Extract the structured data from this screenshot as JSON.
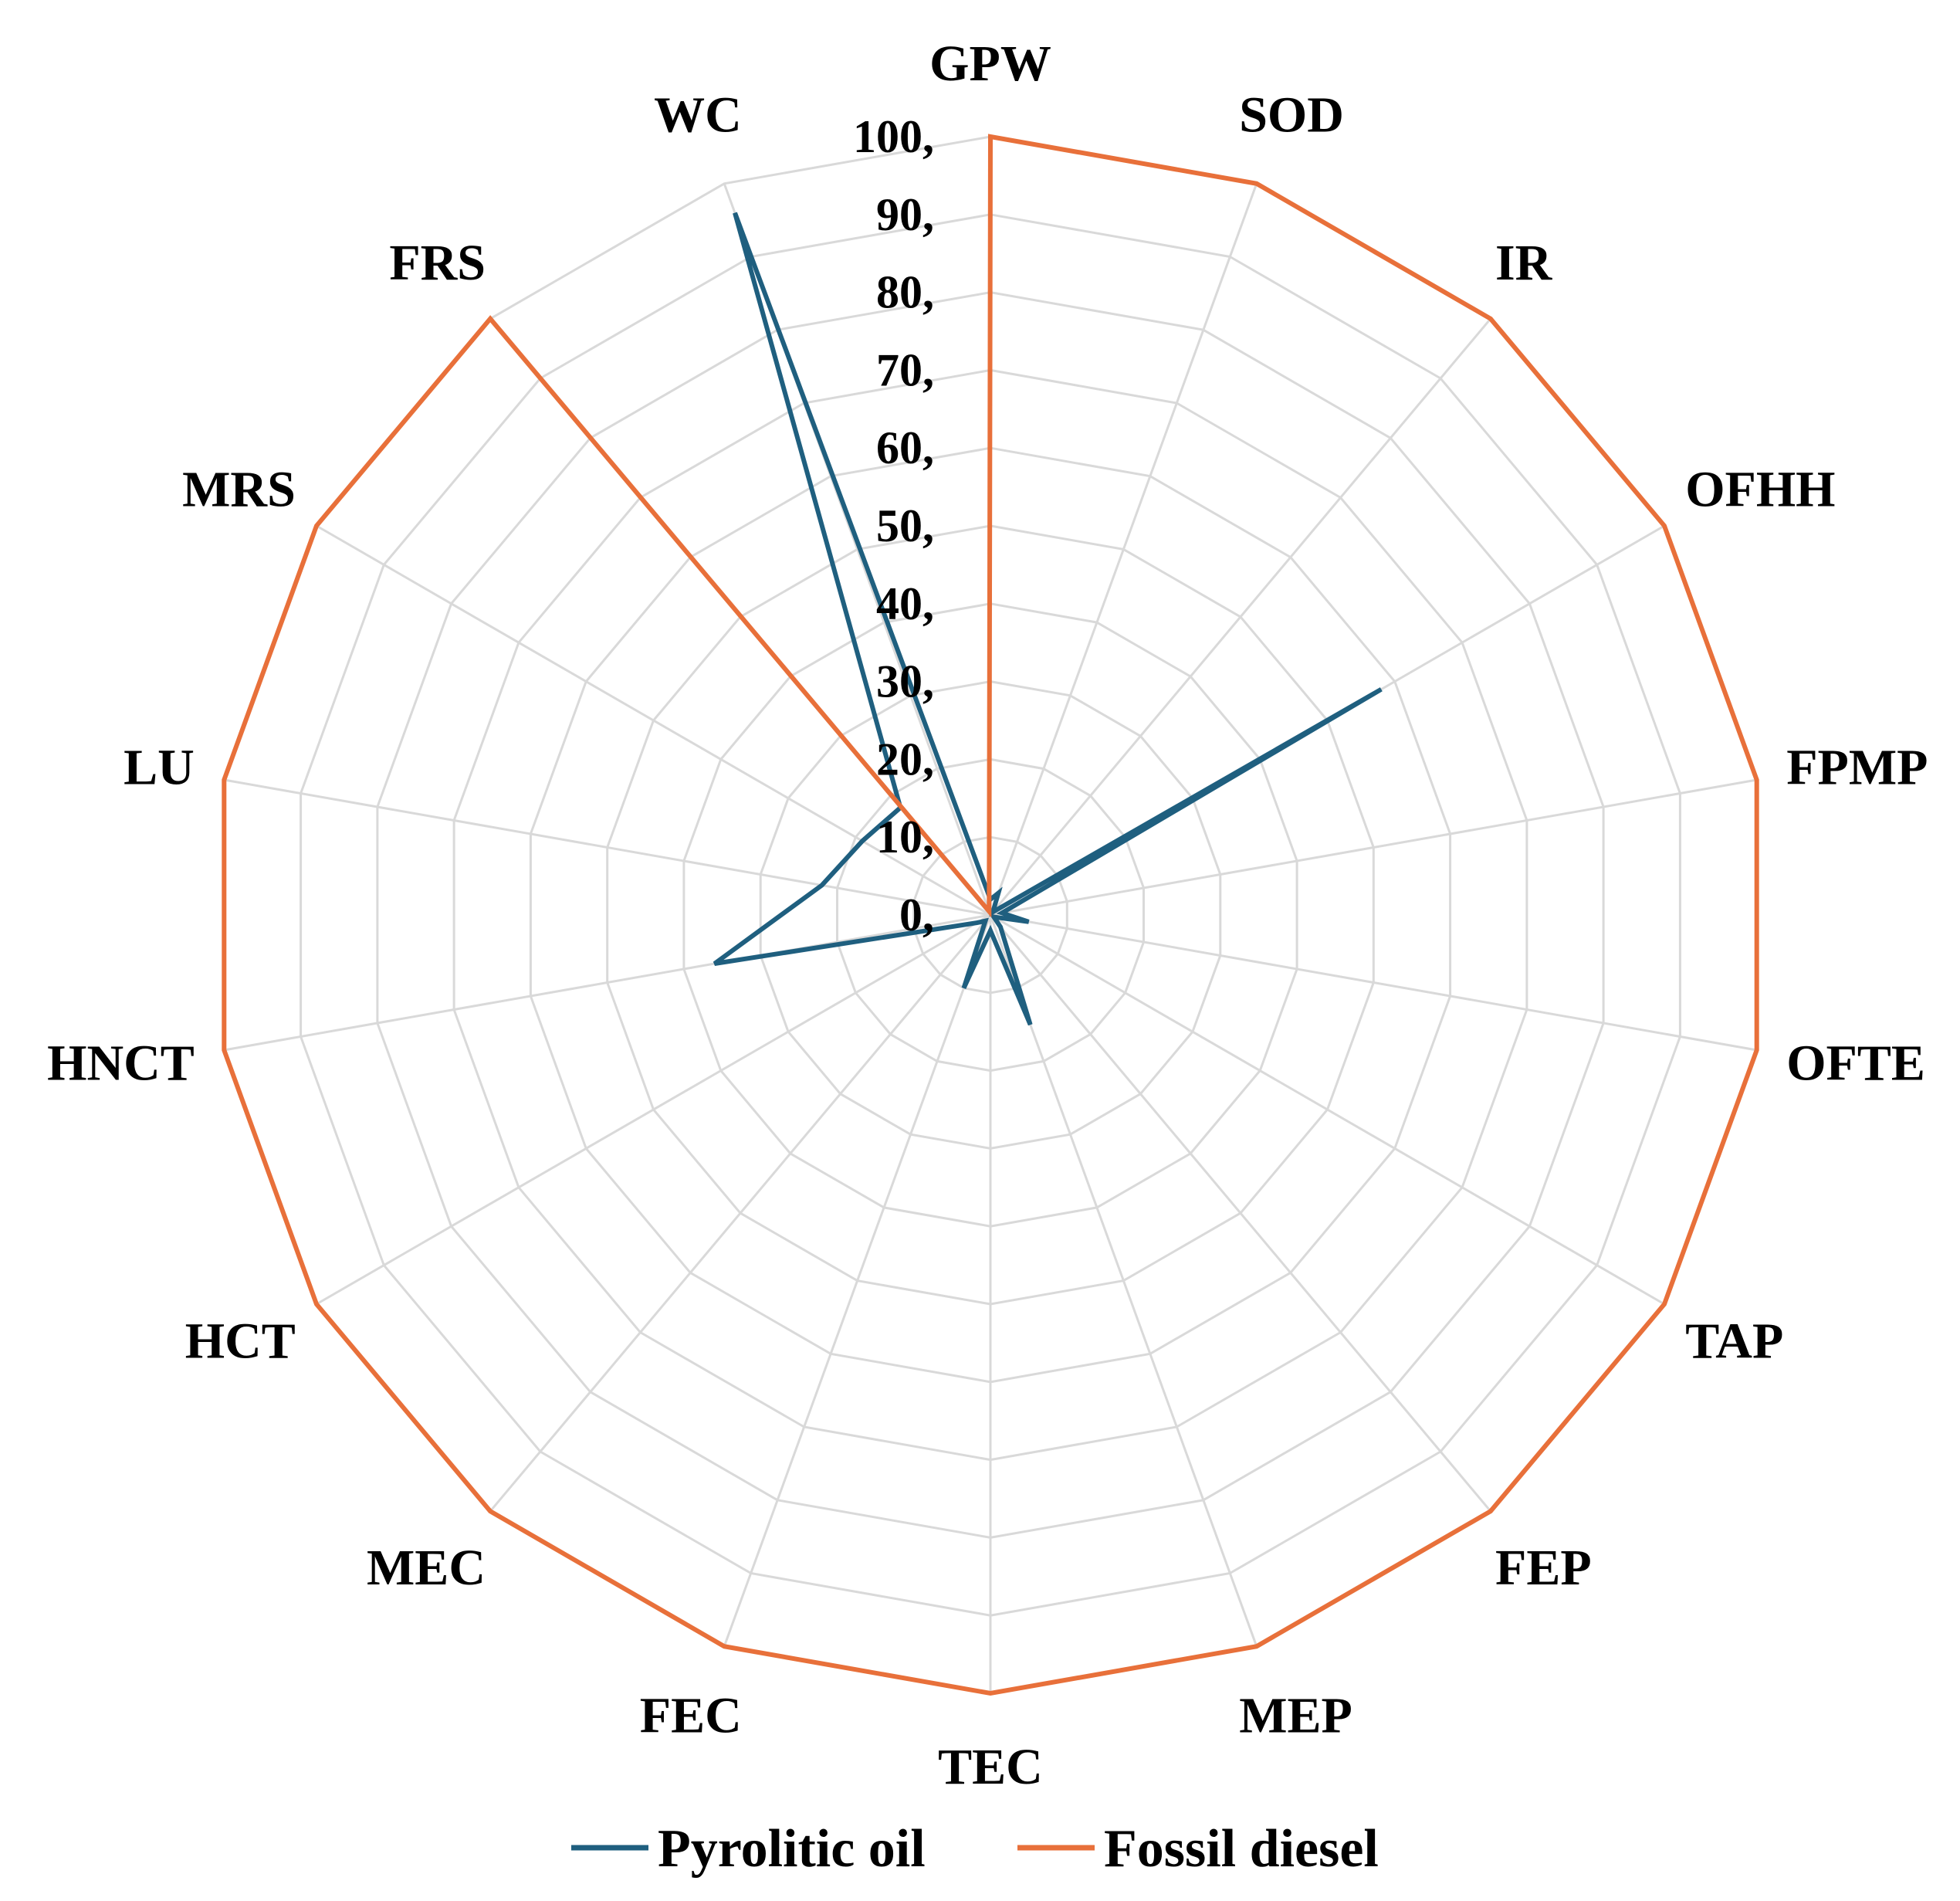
{
  "chart_data": {
    "type": "radar",
    "categories": [
      "GPW",
      "SOD",
      "IR",
      "OFHH",
      "FPMP",
      "OFTE",
      "TAP",
      "FEP",
      "MEP",
      "TEC",
      "FEC",
      "MEC",
      "HCT",
      "HNCT",
      "LU",
      "MRS",
      "FRS",
      "WC"
    ],
    "r_ticks": [
      "0,",
      "10,",
      "20,",
      "30,",
      "40,",
      "50,",
      "60,",
      "70,",
      "80,",
      "90,",
      "100,"
    ],
    "rlim": [
      0,
      100
    ],
    "grid": true,
    "legend_position": "bottom",
    "series": [
      {
        "name": "Pyrolitic oil",
        "color": "#1f5f7f",
        "values": [
          2,
          3,
          0.5,
          58,
          1.5,
          5,
          0.5,
          2,
          15,
          2,
          10,
          1,
          2,
          36,
          22,
          19,
          18,
          96
        ]
      },
      {
        "name": "Fossil diesel",
        "color": "#e8703a",
        "values": [
          100,
          100,
          100,
          100,
          100,
          100,
          100,
          100,
          100,
          100,
          100,
          100,
          100,
          100,
          100,
          100,
          100,
          0.5
        ]
      }
    ]
  }
}
